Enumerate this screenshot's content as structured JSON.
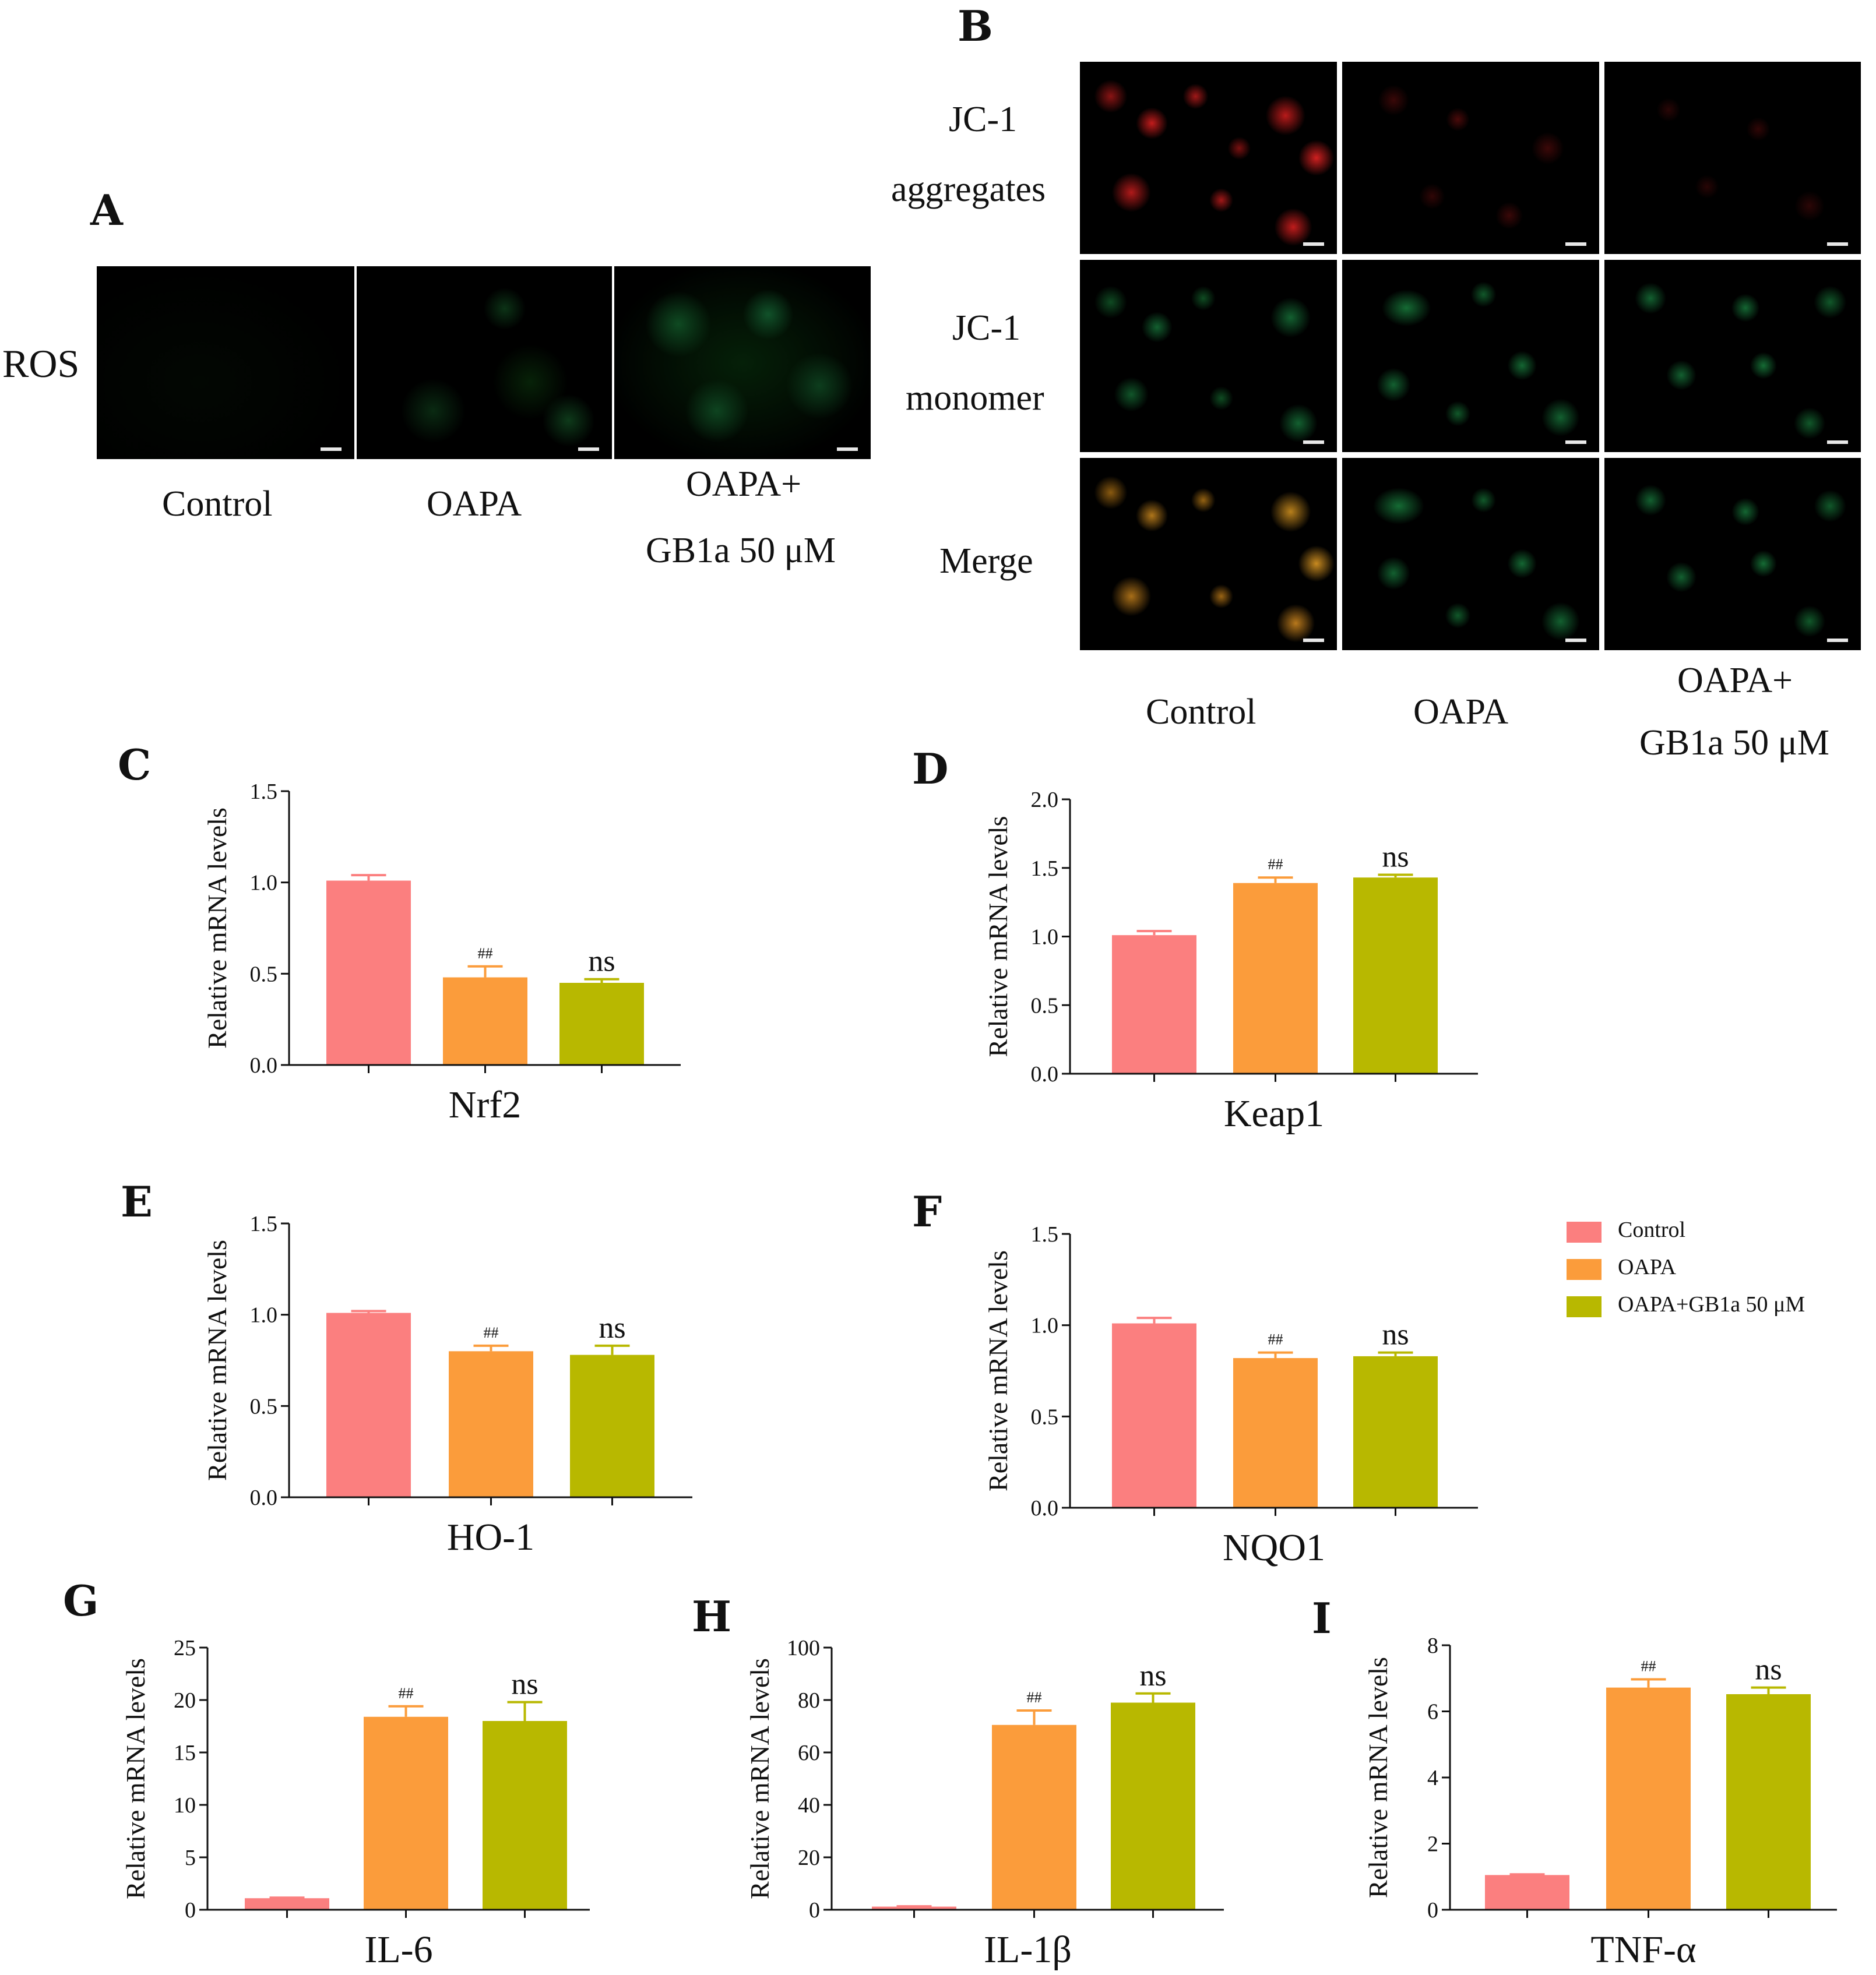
{
  "panels": {
    "A": "A",
    "B": "B",
    "C": "C",
    "D": "D",
    "E": "E",
    "F": "F",
    "G": "G",
    "H": "H",
    "I": "I"
  },
  "panel_a": {
    "row_label": "ROS",
    "columns": [
      "Control",
      "OAPA",
      "OAPA+",
      "GB1a 50 μM"
    ]
  },
  "panel_b": {
    "rows": [
      {
        "line1": "JC-1",
        "line2": "aggregates"
      },
      {
        "line1": "JC-1",
        "line2": "monomer"
      },
      {
        "line1": "Merge",
        "line2": ""
      }
    ],
    "columns": [
      "Control",
      "OAPA",
      "OAPA+",
      "GB1a 50 μM"
    ]
  },
  "colors": {
    "control": "#fb7f7f",
    "oapa": "#fb9c3b",
    "oapa_gb1a": "#b8b800"
  },
  "legend": {
    "items": [
      {
        "label": "Control",
        "color": "#fb7f7f"
      },
      {
        "label": "OAPA",
        "color": "#fb9c3b"
      },
      {
        "label": "OAPA+GB1a 50 μM",
        "color": "#b8b800"
      }
    ]
  },
  "chart_data": [
    {
      "id": "C",
      "type": "bar",
      "title": "Nrf2",
      "ylabel": "Relative mRNA levels",
      "ylim": [
        0,
        1.5
      ],
      "yticks": [
        "0.0",
        "0.5",
        "1.0",
        "1.5"
      ],
      "categories": [
        "Control",
        "OAPA",
        "OAPA+GB1a 50 μM"
      ],
      "values": [
        1.01,
        0.48,
        0.45
      ],
      "errors": [
        0.03,
        0.06,
        0.02
      ],
      "annotations": [
        "",
        "##",
        "ns"
      ]
    },
    {
      "id": "D",
      "type": "bar",
      "title": "Keap1",
      "ylabel": "Relative mRNA levels",
      "ylim": [
        0,
        2.0
      ],
      "yticks": [
        "0.0",
        "0.5",
        "1.0",
        "1.5",
        "2.0"
      ],
      "categories": [
        "Control",
        "OAPA",
        "OAPA+GB1a 50 μM"
      ],
      "values": [
        1.01,
        1.39,
        1.43
      ],
      "errors": [
        0.03,
        0.04,
        0.02
      ],
      "annotations": [
        "",
        "##",
        "ns"
      ]
    },
    {
      "id": "E",
      "type": "bar",
      "title": "HO-1",
      "ylabel": "Relative mRNA levels",
      "ylim": [
        0,
        1.5
      ],
      "yticks": [
        "0.0",
        "0.5",
        "1.0",
        "1.5"
      ],
      "categories": [
        "Control",
        "OAPA",
        "OAPA+GB1a 50 μM"
      ],
      "values": [
        1.01,
        0.8,
        0.78
      ],
      "errors": [
        0.01,
        0.03,
        0.05
      ],
      "annotations": [
        "",
        "##",
        "ns"
      ]
    },
    {
      "id": "F",
      "type": "bar",
      "title": "NQO1",
      "ylabel": "Relative mRNA levels",
      "ylim": [
        0,
        1.5
      ],
      "yticks": [
        "0.0",
        "0.5",
        "1.0",
        "1.5"
      ],
      "categories": [
        "Control",
        "OAPA",
        "OAPA+GB1a 50 μM"
      ],
      "values": [
        1.01,
        0.82,
        0.83
      ],
      "errors": [
        0.03,
        0.03,
        0.02
      ],
      "annotations": [
        "",
        "##",
        "ns"
      ]
    },
    {
      "id": "G",
      "type": "bar",
      "title": "IL-6",
      "ylabel": "Relative mRNA levels",
      "ylim": [
        0,
        25
      ],
      "yticks": [
        "0",
        "5",
        "10",
        "15",
        "20",
        "25"
      ],
      "categories": [
        "Control",
        "OAPA",
        "OAPA+GB1a 50 μM"
      ],
      "values": [
        1.1,
        18.4,
        18.0
      ],
      "errors": [
        0.05,
        1.0,
        1.8
      ],
      "annotations": [
        "",
        "##",
        "ns"
      ]
    },
    {
      "id": "H",
      "type": "bar",
      "title": "IL-1β",
      "ylabel": "Relative mRNA levels",
      "ylim": [
        0,
        100
      ],
      "yticks": [
        "0",
        "20",
        "40",
        "60",
        "80",
        "100"
      ],
      "categories": [
        "Control",
        "OAPA",
        "OAPA+GB1a 50 μM"
      ],
      "values": [
        1.2,
        70.5,
        79.0
      ],
      "errors": [
        0.1,
        5.5,
        3.5
      ],
      "annotations": [
        "",
        "##",
        "ns"
      ]
    },
    {
      "id": "I",
      "type": "bar",
      "title": "TNF-α",
      "ylabel": "Relative mRNA levels",
      "ylim": [
        0,
        8
      ],
      "yticks": [
        "0",
        "2",
        "4",
        "6",
        "8"
      ],
      "categories": [
        "Control",
        "OAPA",
        "OAPA+GB1a 50 μM"
      ],
      "values": [
        1.05,
        6.72,
        6.52
      ],
      "errors": [
        0.02,
        0.25,
        0.2
      ],
      "annotations": [
        "",
        "##",
        "ns"
      ]
    }
  ]
}
